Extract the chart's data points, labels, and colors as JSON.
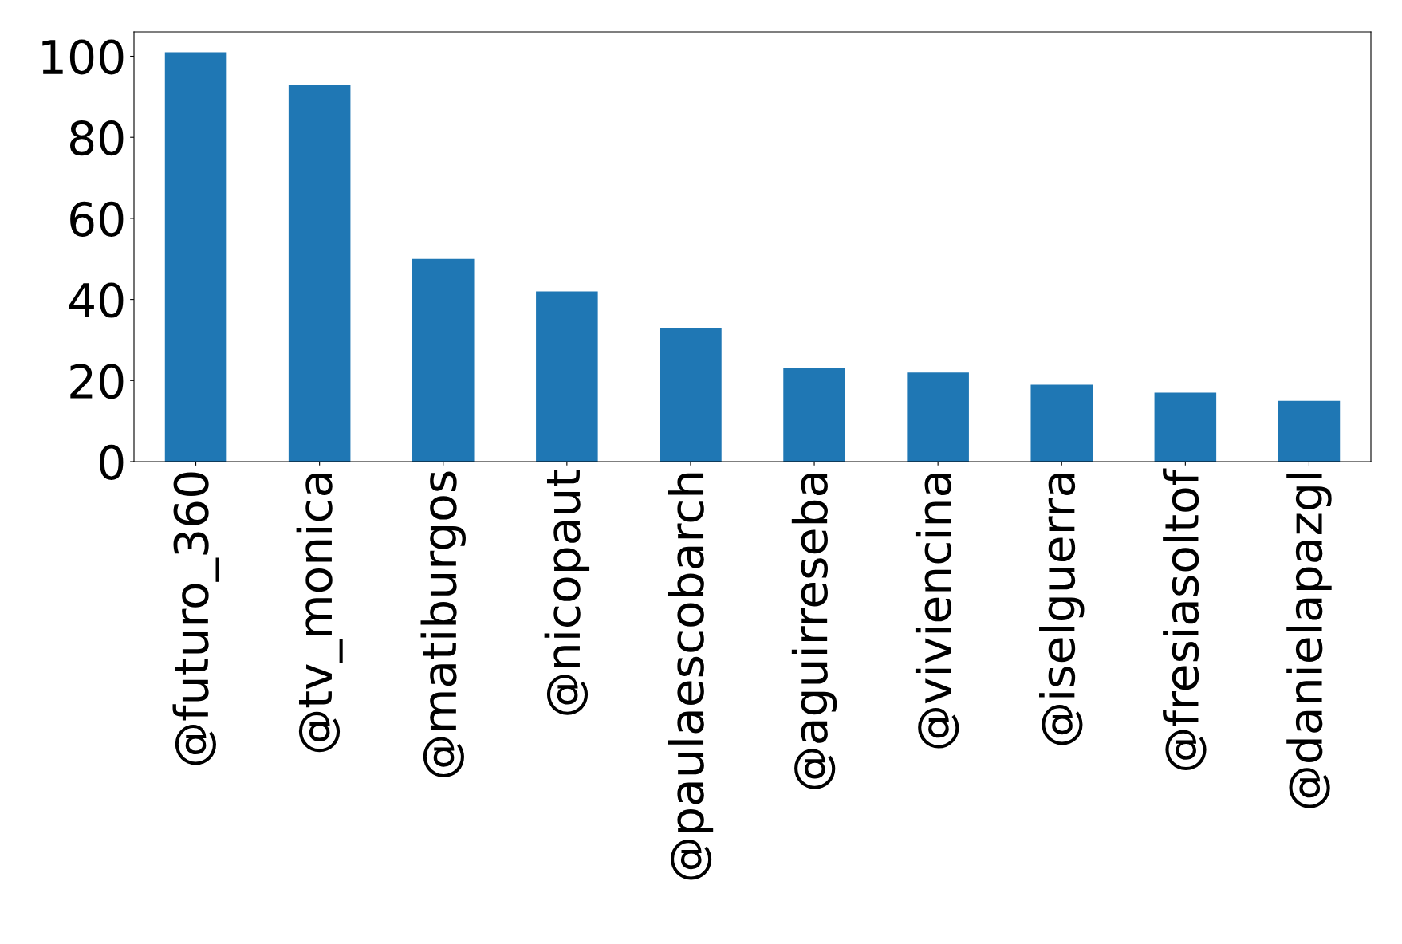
{
  "chart_data": {
    "type": "bar",
    "categories": [
      "@futuro_360",
      "@tv_monica",
      "@matiburgos",
      "@nicopaut",
      "@paulaescobarch",
      "@aguirreseba",
      "@viviencina",
      "@iselguerra",
      "@fresiasoltof",
      "@danielapazgl"
    ],
    "values": [
      101,
      93,
      50,
      42,
      33,
      23,
      22,
      19,
      17,
      15
    ],
    "color": "#1f77b4",
    "ylim": [
      0,
      106
    ],
    "yticks": [
      0,
      20,
      40,
      60,
      80,
      100
    ],
    "grid": false
  }
}
